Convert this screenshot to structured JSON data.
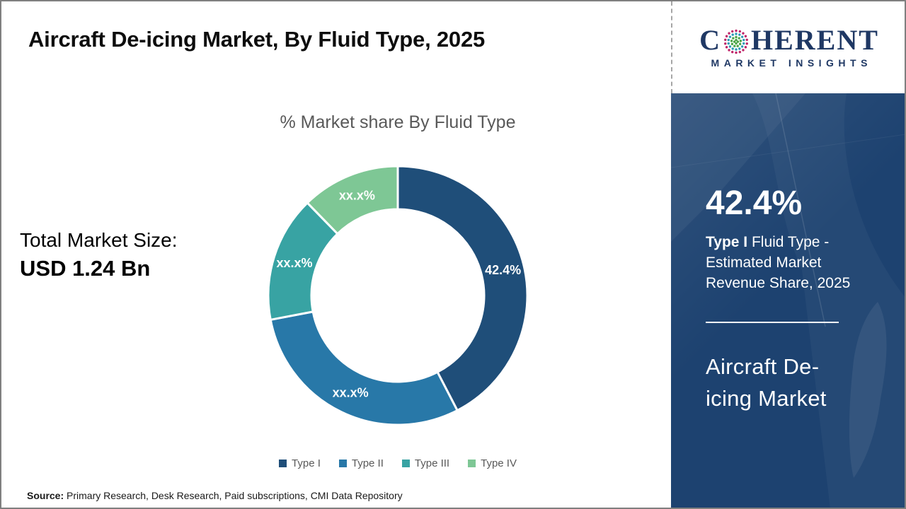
{
  "header": {
    "title": "Aircraft De-icing Market, By Fluid Type, 2025",
    "logo": {
      "brand_first_letter": "C",
      "brand_rest": "HERENT",
      "subtitle": "MARKET INSIGHTS",
      "brand_color": "#1f3864",
      "globe_colors": {
        "outer": "#bf2569",
        "middle": "#2b9bb5",
        "inner": "#4ca546"
      }
    }
  },
  "left_panel": {
    "total_label": "Total Market Size:",
    "total_value": "USD 1.24 Bn"
  },
  "chart_data": {
    "type": "pie",
    "donut": true,
    "title": "% Market share By Fluid Type",
    "categories": [
      "Type I",
      "Type II",
      "Type III",
      "Type IV"
    ],
    "values": [
      42.4,
      29.6,
      15.7,
      12.3
    ],
    "labels": [
      "42.4%",
      "xx.x%",
      "xx.x%",
      "xx.x%"
    ],
    "colors": [
      "#1f4e79",
      "#2878a8",
      "#38a3a3",
      "#7ec795"
    ],
    "start_angle_deg": 0,
    "direction": "clockwise",
    "legend_position": "bottom",
    "label_color": "#ffffff"
  },
  "sidebar": {
    "background_color": "#1d4270",
    "stat_value": "42.4%",
    "stat_bold": "Type I",
    "stat_rest": " Fluid Type - Estimated Market Revenue Share, 2025",
    "market_name": "Aircraft De-icing Market"
  },
  "footer": {
    "source_label": "Source:",
    "source_text": " Primary Research, Desk Research, Paid subscriptions, CMI Data Repository"
  }
}
